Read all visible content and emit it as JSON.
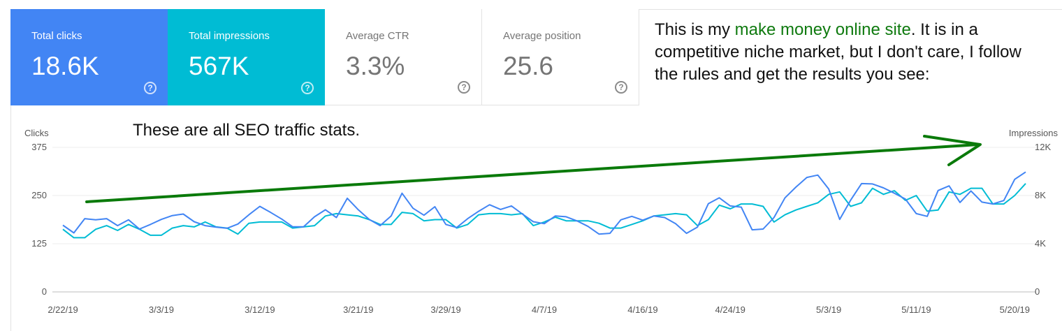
{
  "cards": [
    {
      "label": "Total clicks",
      "value": "18.6K",
      "help": "?"
    },
    {
      "label": "Total impressions",
      "value": "567K",
      "help": "?"
    },
    {
      "label": "Average CTR",
      "value": "3.3%",
      "help": "?"
    },
    {
      "label": "Average position",
      "value": "25.6",
      "help": "?"
    }
  ],
  "note": {
    "before": "This is my ",
    "highlight": "make money online site",
    "after": ". It is in a competitive niche market, but I don't care, I follow the rules and get the results you see:"
  },
  "chart_note": "These are all SEO traffic stats.",
  "colors": {
    "clicks": "#4285f4",
    "impressions": "#00bcd4",
    "annotation_arrow": "#0a7a0a"
  },
  "chart_data": {
    "type": "line",
    "xlabel": "",
    "ylabel": "Clicks",
    "y2label": "Impressions",
    "ylim": [
      0,
      375
    ],
    "y2lim": [
      0,
      12000
    ],
    "y_ticks": [
      "0",
      "125",
      "250",
      "375"
    ],
    "y2_ticks": [
      "0",
      "4K",
      "8K",
      "12K"
    ],
    "x_tick_labels": [
      "2/22/19",
      "3/3/19",
      "3/12/19",
      "3/21/19",
      "3/29/19",
      "4/7/19",
      "4/16/19",
      "4/24/19",
      "5/3/19",
      "5/11/19",
      "5/20/19"
    ],
    "x_tick_index": [
      0,
      9,
      18,
      27,
      35,
      44,
      53,
      61,
      70,
      78,
      87
    ],
    "grid": true,
    "series": [
      {
        "name": "Clicks",
        "axis": "left",
        "values": [
          173,
          153,
          190,
          187,
          190,
          172,
          187,
          163,
          175,
          188,
          198,
          202,
          182,
          172,
          168,
          165,
          176,
          200,
          222,
          206,
          189,
          169,
          169,
          195,
          213,
          193,
          243,
          213,
          188,
          172,
          197,
          256,
          217,
          199,
          221,
          175,
          167,
          190,
          209,
          226,
          214,
          223,
          202,
          182,
          177,
          197,
          195,
          184,
          170,
          150,
          152,
          187,
          196,
          186,
          197,
          193,
          177,
          152,
          168,
          229,
          244,
          223,
          220,
          161,
          163,
          193,
          244,
          272,
          297,
          303,
          267,
          188,
          238,
          281,
          280,
          270,
          256,
          241,
          203,
          196,
          263,
          275,
          232,
          262,
          233,
          228,
          237,
          292,
          311
        ]
      },
      {
        "name": "Impressions",
        "axis": "right",
        "values": [
          5200,
          4500,
          4500,
          5200,
          5500,
          5100,
          5600,
          5200,
          4700,
          4700,
          5300,
          5500,
          5400,
          5800,
          5400,
          5300,
          4800,
          5700,
          5800,
          5800,
          5800,
          5300,
          5400,
          5500,
          6300,
          6500,
          6400,
          6300,
          6000,
          5600,
          5600,
          6600,
          6500,
          5900,
          6000,
          6000,
          5300,
          5600,
          6400,
          6500,
          6500,
          6400,
          6500,
          5500,
          5800,
          6200,
          5900,
          5900,
          5900,
          5700,
          5300,
          5300,
          5600,
          5900,
          6300,
          6400,
          6500,
          6400,
          5500,
          6000,
          7200,
          6900,
          7300,
          7300,
          7100,
          5800,
          6400,
          6800,
          7100,
          7400,
          8100,
          8300,
          7100,
          7400,
          8600,
          8100,
          8400,
          7600,
          8000,
          6700,
          6800,
          8300,
          8100,
          8600,
          8600,
          7300,
          7300,
          8000,
          9000
        ]
      }
    ]
  }
}
